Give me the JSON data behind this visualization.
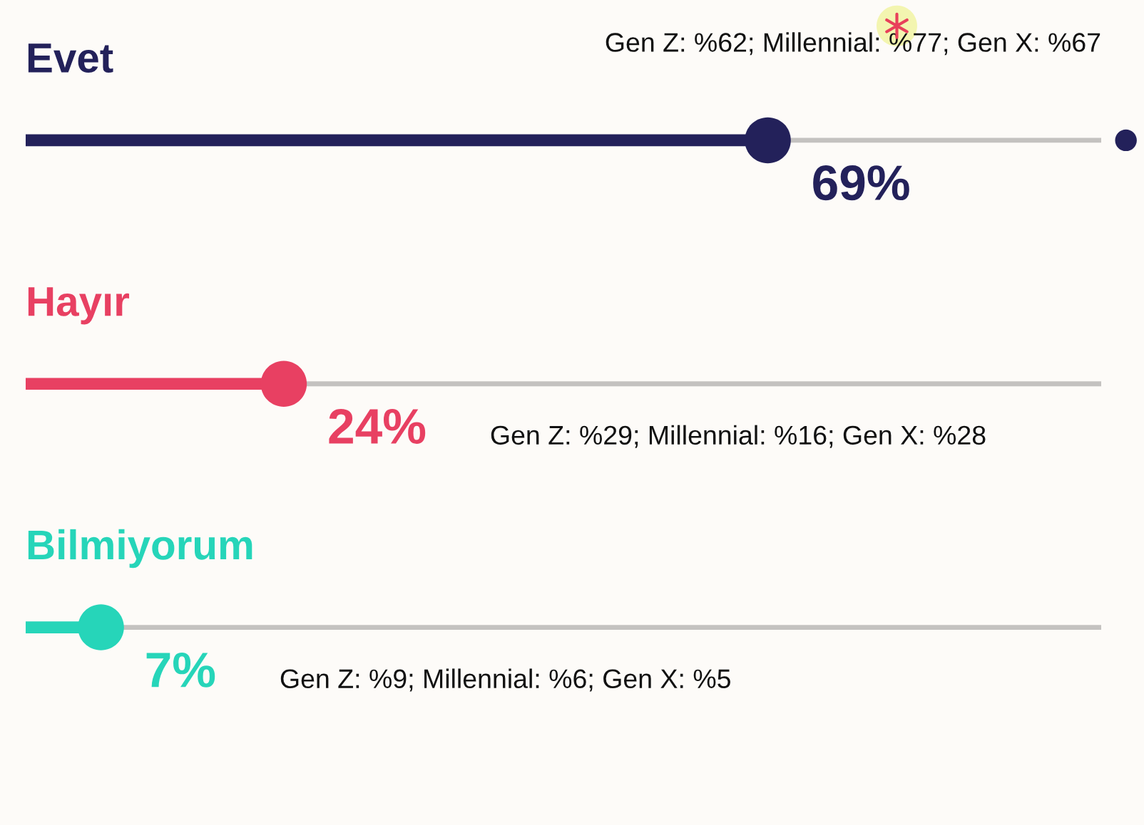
{
  "chart_data": {
    "type": "lollipop",
    "orientation": "horizontal",
    "categories": [
      "Evet",
      "Hayır",
      "Bilmiyorum"
    ],
    "series": [
      {
        "type": "bar",
        "color": "#c4c2c0",
        "values": [
          100,
          100,
          100
        ]
      },
      {
        "colors": [
          "#23215a",
          "#e84062",
          "#26d5b9"
        ],
        "values": [
          69,
          24,
          7
        ],
        "value_labels": [
          "69%",
          "24%",
          "7%"
        ]
      }
    ],
    "tick_labels": false,
    "annotations": [
      "Gen Z: %62; Millennial: %77; Gen X: %67",
      "Gen Z: %29; Millennial: %16; Gen X: %28",
      "Gen Z: %9; Millennial: %6; Gen X: %5"
    ]
  }
}
